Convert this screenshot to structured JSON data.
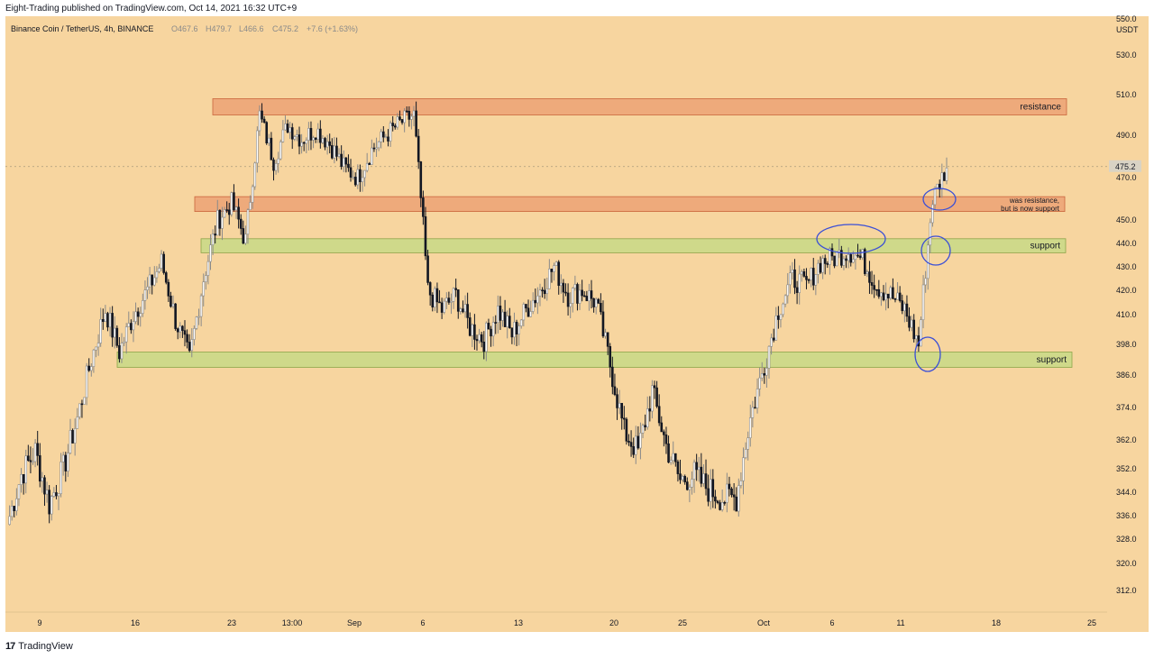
{
  "header": {
    "published": "Eight-Trading published on TradingView.com, Oct 14, 2021 16:32 UTC+9"
  },
  "symbol": {
    "name": "Binance Coin / TetherUS, 4h, BINANCE",
    "o": "O467.6",
    "h": "H479.7",
    "l": "L466.6",
    "c": "C475.2",
    "change": "+7.6 (+1.63%)"
  },
  "footer": {
    "logo": "17",
    "brand": "TradingView"
  },
  "colors": {
    "background": "#f7d59f",
    "resistance_zone": "#eeaa7b",
    "support_zone": "#cfd98a",
    "candle": "#131722",
    "wick_gray": "#8a8a8a",
    "annotation_ellipse": "#3b4fd6",
    "last_price_tag": "#d9d3c4"
  },
  "chart_data": {
    "type": "candlestick",
    "symbol": "Binance Coin / TetherUS",
    "interval": "4h",
    "exchange": "BINANCE",
    "currency": "USDT",
    "last_price": "475.2",
    "y_ticks": [
      "530.0",
      "510.0",
      "490.0",
      "470.0",
      "450.0",
      "440.0",
      "430.0",
      "420.0",
      "410.0",
      "398.0",
      "386.0",
      "374.0",
      "362.0",
      "352.0",
      "344.0",
      "336.0",
      "328.0",
      "320.0",
      "312.0"
    ],
    "y_top_label": "550.0",
    "ylim": [
      312,
      530
    ],
    "x_ticks": [
      "9",
      "16",
      "23",
      "13:00",
      "Sep",
      "6",
      "13",
      "20",
      "25",
      "Oct",
      "6",
      "11",
      "18",
      "25"
    ],
    "price_path": [
      {
        "t": "Aug 8",
        "p": 333
      },
      {
        "t": "Aug 9",
        "p": 350
      },
      {
        "t": "Aug 10",
        "p": 358
      },
      {
        "t": "Aug 11",
        "p": 340
      },
      {
        "t": "Aug 12",
        "p": 352
      },
      {
        "t": "Aug 13",
        "p": 370
      },
      {
        "t": "Aug 14",
        "p": 392
      },
      {
        "t": "Aug 15",
        "p": 412
      },
      {
        "t": "Aug 16",
        "p": 395
      },
      {
        "t": "Aug 17",
        "p": 410
      },
      {
        "t": "Aug 18",
        "p": 420
      },
      {
        "t": "Aug 19",
        "p": 432
      },
      {
        "t": "Aug 20",
        "p": 408
      },
      {
        "t": "Aug 21",
        "p": 392
      },
      {
        "t": "Aug 22",
        "p": 425
      },
      {
        "t": "Aug 23",
        "p": 450
      },
      {
        "t": "Aug 24",
        "p": 458
      },
      {
        "t": "Aug 25",
        "p": 441
      },
      {
        "t": "Aug 26",
        "p": 500
      },
      {
        "t": "Aug 27",
        "p": 478
      },
      {
        "t": "Aug 28",
        "p": 495
      },
      {
        "t": "Aug 29",
        "p": 488
      },
      {
        "t": "Aug 30",
        "p": 493
      },
      {
        "t": "Aug 31",
        "p": 486
      },
      {
        "t": "Sep 1",
        "p": 475
      },
      {
        "t": "Sep 2",
        "p": 470
      },
      {
        "t": "Sep 3",
        "p": 483
      },
      {
        "t": "Sep 4",
        "p": 490
      },
      {
        "t": "Sep 5",
        "p": 496
      },
      {
        "t": "Sep 6",
        "p": 500
      },
      {
        "t": "Sep 7",
        "p": 420
      },
      {
        "t": "Sep 8",
        "p": 412
      },
      {
        "t": "Sep 9",
        "p": 418
      },
      {
        "t": "Sep 10",
        "p": 405
      },
      {
        "t": "Sep 11",
        "p": 400
      },
      {
        "t": "Sep 12",
        "p": 412
      },
      {
        "t": "Sep 13",
        "p": 402
      },
      {
        "t": "Sep 14",
        "p": 412
      },
      {
        "t": "Sep 15",
        "p": 420
      },
      {
        "t": "Sep 16",
        "p": 430
      },
      {
        "t": "Sep 17",
        "p": 418
      },
      {
        "t": "Sep 18",
        "p": 420
      },
      {
        "t": "Sep 19",
        "p": 415
      },
      {
        "t": "Sep 20",
        "p": 390
      },
      {
        "t": "Sep 21",
        "p": 365
      },
      {
        "t": "Sep 22",
        "p": 358
      },
      {
        "t": "Sep 23",
        "p": 380
      },
      {
        "t": "Sep 24",
        "p": 360
      },
      {
        "t": "Sep 25",
        "p": 348
      },
      {
        "t": "Sep 26",
        "p": 350
      },
      {
        "t": "Sep 27",
        "p": 345
      },
      {
        "t": "Sep 28",
        "p": 342
      },
      {
        "t": "Sep 29",
        "p": 342
      },
      {
        "t": "Sep 30",
        "p": 370
      },
      {
        "t": "Oct 1",
        "p": 390
      },
      {
        "t": "Oct 2",
        "p": 412
      },
      {
        "t": "Oct 3",
        "p": 425
      },
      {
        "t": "Oct 4",
        "p": 422
      },
      {
        "t": "Oct 5",
        "p": 432
      },
      {
        "t": "Oct 6",
        "p": 434
      },
      {
        "t": "Oct 7",
        "p": 437
      },
      {
        "t": "Oct 8",
        "p": 433
      },
      {
        "t": "Oct 9",
        "p": 422
      },
      {
        "t": "Oct 10",
        "p": 418
      },
      {
        "t": "Oct 11",
        "p": 412
      },
      {
        "t": "Oct 12",
        "p": 398
      },
      {
        "t": "Oct 13",
        "p": 460
      },
      {
        "t": "Oct 14",
        "p": 475
      }
    ],
    "zones": [
      {
        "kind": "resistance",
        "label": "resistance",
        "low": 500,
        "high": 508
      },
      {
        "kind": "resistance",
        "label": "was resistance,\nbut is now support",
        "low": 454,
        "high": 461
      },
      {
        "kind": "support",
        "label": "support",
        "low": 436,
        "high": 442
      },
      {
        "kind": "support",
        "label": "support",
        "low": 389,
        "high": 395
      }
    ],
    "annotations": [
      "ellipse",
      "ellipse",
      "ellipse",
      "ellipse"
    ]
  }
}
